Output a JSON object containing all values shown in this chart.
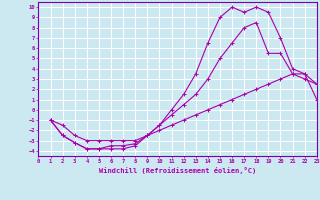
{
  "xlabel": "Windchill (Refroidissement éolien,°C)",
  "xlim": [
    0,
    23
  ],
  "ylim": [
    -4.5,
    10.5
  ],
  "xticks": [
    0,
    1,
    2,
    3,
    4,
    5,
    6,
    7,
    8,
    9,
    10,
    11,
    12,
    13,
    14,
    15,
    16,
    17,
    18,
    19,
    20,
    21,
    22,
    23
  ],
  "yticks": [
    -4,
    -3,
    -2,
    -1,
    0,
    1,
    2,
    3,
    4,
    5,
    6,
    7,
    8,
    9,
    10
  ],
  "bg_color": "#cce8f0",
  "grid_color": "#ffffff",
  "line_color": "#aa00aa",
  "curve1_x": [
    1,
    2,
    3,
    4,
    5,
    6,
    7,
    8,
    9,
    10,
    11,
    12,
    13,
    14,
    15,
    16,
    17,
    18,
    19,
    20,
    21,
    22,
    23
  ],
  "curve1_y": [
    -1,
    -2.5,
    -3.2,
    -3.8,
    -3.8,
    -3.8,
    -3.8,
    -3.5,
    -2.5,
    -1.5,
    0.0,
    1.5,
    3.5,
    6.5,
    9.0,
    10.0,
    9.5,
    10.0,
    9.5,
    7.0,
    4.0,
    3.5,
    2.5
  ],
  "curve2_x": [
    1,
    2,
    3,
    4,
    5,
    6,
    7,
    8,
    9,
    10,
    11,
    12,
    13,
    14,
    15,
    16,
    17,
    18,
    19,
    20,
    21,
    22,
    23
  ],
  "curve2_y": [
    -1,
    -2.5,
    -3.2,
    -3.8,
    -3.8,
    -3.5,
    -3.5,
    -3.3,
    -2.5,
    -1.5,
    -0.5,
    0.5,
    1.5,
    3.0,
    5.0,
    6.5,
    8.0,
    8.5,
    5.5,
    5.5,
    3.5,
    3.0,
    2.5
  ],
  "curve3_x": [
    1,
    2,
    3,
    4,
    5,
    6,
    7,
    8,
    9,
    10,
    11,
    12,
    13,
    14,
    15,
    16,
    17,
    18,
    19,
    20,
    21,
    22,
    23
  ],
  "curve3_y": [
    -1,
    -1.5,
    -2.5,
    -3.0,
    -3.0,
    -3.0,
    -3.0,
    -3.0,
    -2.5,
    -2.0,
    -1.5,
    -1.0,
    -0.5,
    0.0,
    0.5,
    1.0,
    1.5,
    2.0,
    2.5,
    3.0,
    3.5,
    3.5,
    1.0
  ]
}
